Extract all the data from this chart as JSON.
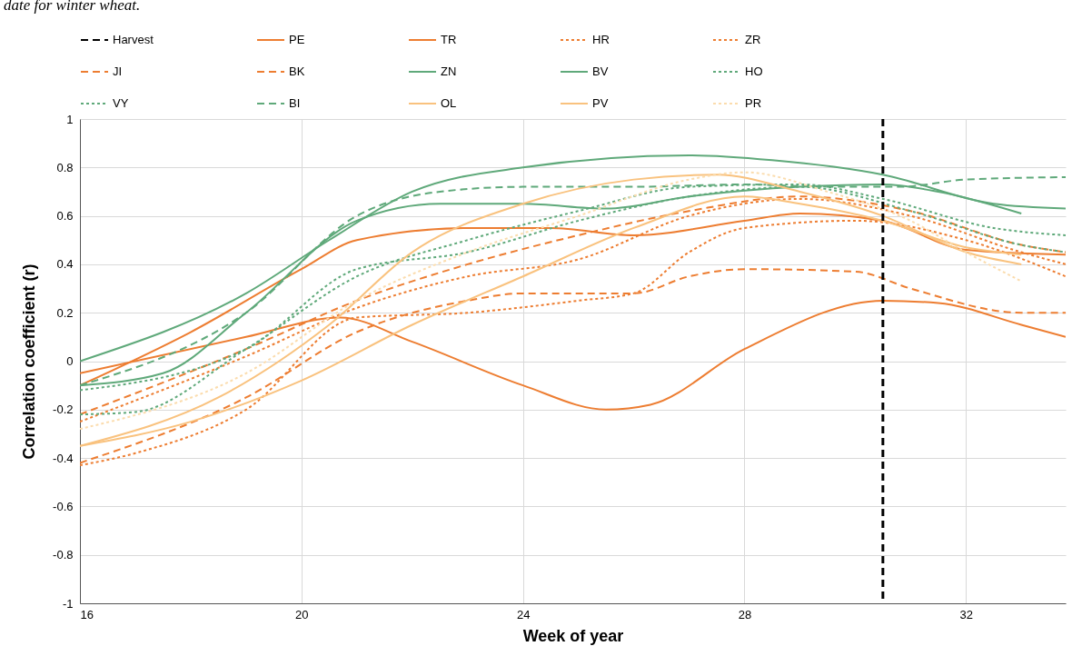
{
  "chart_data": {
    "type": "line",
    "xlabel": "Week of year",
    "ylabel": "Correlation coefficient (r)",
    "annotations": [
      "date for winter wheat."
    ],
    "xlim": [
      16,
      33.8
    ],
    "xticks": [
      16,
      20,
      24,
      28,
      32
    ],
    "ylim": [
      -1,
      1
    ],
    "yticks": [
      -1,
      -0.8,
      -0.6,
      -0.4,
      -0.2,
      0,
      0.2,
      0.4,
      0.6,
      0.8,
      1
    ],
    "grid": true,
    "legend": "top",
    "ref_lines": [
      {
        "axis": "x",
        "value": 30.5,
        "label": "Harvest",
        "color": "#000000",
        "line_style": "dashed"
      }
    ],
    "series": [
      {
        "name": "PE",
        "color": "#ed7d31",
        "line_style": "solid",
        "x": [
          16,
          18,
          20,
          21,
          23,
          24.5,
          26,
          28,
          29,
          30.5,
          32,
          33.8
        ],
        "values": [
          -0.1,
          0.12,
          0.38,
          0.5,
          0.55,
          0.55,
          0.52,
          0.58,
          0.61,
          0.58,
          0.46,
          0.44
        ]
      },
      {
        "name": "TR",
        "color": "#ed7d31",
        "line_style": "solid",
        "x": [
          16,
          19,
          20.7,
          22,
          24,
          25.5,
          26.3,
          28,
          30.5,
          31.5,
          33,
          33.8
        ],
        "values": [
          -0.05,
          0.1,
          0.18,
          0.08,
          -0.1,
          -0.2,
          -0.18,
          0.05,
          0.25,
          0.24,
          0.15,
          0.1
        ]
      },
      {
        "name": "HR",
        "color": "#ed7d31",
        "line_style": "dotted",
        "x": [
          16,
          17,
          19,
          21,
          23,
          25,
          26,
          27,
          28,
          30,
          32,
          33.8
        ],
        "values": [
          -0.43,
          -0.38,
          -0.2,
          0.18,
          0.2,
          0.25,
          0.28,
          0.45,
          0.55,
          0.58,
          0.5,
          0.35
        ]
      },
      {
        "name": "ZR",
        "color": "#ed7d31",
        "line_style": "dotted",
        "x": [
          16,
          19,
          21,
          23,
          25,
          27,
          29,
          31,
          33,
          33.8
        ],
        "values": [
          -0.25,
          0.02,
          0.22,
          0.35,
          0.42,
          0.6,
          0.67,
          0.6,
          0.45,
          0.4
        ]
      },
      {
        "name": "JI",
        "color": "#ed7d31",
        "line_style": "dashed",
        "x": [
          16,
          19,
          21,
          23,
          24,
          26,
          27,
          28,
          30,
          31,
          33,
          33.8
        ],
        "values": [
          -0.42,
          -0.15,
          0.12,
          0.25,
          0.28,
          0.28,
          0.35,
          0.38,
          0.37,
          0.3,
          0.2,
          0.2
        ]
      },
      {
        "name": "BK",
        "color": "#ed7d31",
        "line_style": "dashed",
        "x": [
          16,
          19,
          21,
          23,
          25,
          27,
          29,
          31,
          33,
          33.8
        ],
        "values": [
          -0.22,
          0.05,
          0.25,
          0.4,
          0.52,
          0.62,
          0.68,
          0.62,
          0.48,
          0.45
        ]
      },
      {
        "name": "ZN",
        "color": "#5fa97a",
        "line_style": "solid",
        "x": [
          16,
          19,
          20.5,
          22,
          24,
          27,
          28.5,
          30.5,
          32.5,
          33.8
        ],
        "values": [
          0,
          0.28,
          0.5,
          0.7,
          0.8,
          0.85,
          0.83,
          0.77,
          0.65,
          0.63
        ]
      },
      {
        "name": "BV",
        "color": "#5fa97a",
        "line_style": "solid",
        "x": [
          16,
          17.5,
          19,
          21,
          22.5,
          24,
          25.5,
          27,
          29,
          30.5,
          31.5,
          33
        ],
        "values": [
          -0.1,
          -0.05,
          0.2,
          0.58,
          0.65,
          0.65,
          0.63,
          0.68,
          0.72,
          0.73,
          0.7,
          0.61
        ]
      },
      {
        "name": "HO",
        "color": "#5fa97a",
        "line_style": "dotted",
        "x": [
          16,
          17,
          19,
          21,
          23,
          25,
          27,
          29,
          30.5,
          32.5,
          33.8
        ],
        "values": [
          -0.22,
          -0.21,
          0.05,
          0.35,
          0.5,
          0.62,
          0.72,
          0.73,
          0.67,
          0.55,
          0.52
        ]
      },
      {
        "name": "VY",
        "color": "#5fa97a",
        "line_style": "dotted",
        "x": [
          16,
          19,
          21,
          23,
          25,
          27,
          29,
          31,
          33,
          33.8
        ],
        "values": [
          -0.12,
          0.05,
          0.38,
          0.45,
          0.58,
          0.68,
          0.72,
          0.62,
          0.48,
          0.45
        ]
      },
      {
        "name": "BI",
        "color": "#5fa97a",
        "line_style": "dashed",
        "x": [
          16,
          19,
          21,
          22.5,
          24,
          26,
          28,
          29.5,
          30.8,
          32,
          33.8
        ],
        "values": [
          -0.1,
          0.2,
          0.6,
          0.7,
          0.72,
          0.72,
          0.73,
          0.72,
          0.72,
          0.75,
          0.76
        ]
      },
      {
        "name": "OL",
        "color": "#f9c27e",
        "line_style": "solid",
        "x": [
          16,
          18,
          20,
          22,
          24,
          26,
          28,
          29,
          30.5,
          32,
          33
        ],
        "values": [
          -0.35,
          -0.25,
          -0.08,
          0.15,
          0.35,
          0.55,
          0.68,
          0.65,
          0.58,
          0.47,
          0.44
        ]
      },
      {
        "name": "PV",
        "color": "#f9c27e",
        "line_style": "solid",
        "x": [
          16,
          18.5,
          20.5,
          22,
          24,
          26,
          27.5,
          29,
          30.5,
          32,
          33
        ],
        "values": [
          -0.35,
          -0.15,
          0.15,
          0.45,
          0.65,
          0.75,
          0.77,
          0.7,
          0.6,
          0.45,
          0.4
        ]
      },
      {
        "name": "PR",
        "color": "#fbdcad",
        "line_style": "dotted",
        "x": [
          16,
          19,
          21,
          23,
          25,
          27,
          28,
          29.5,
          31,
          32,
          33
        ],
        "values": [
          -0.28,
          -0.05,
          0.25,
          0.45,
          0.6,
          0.75,
          0.78,
          0.7,
          0.58,
          0.45,
          0.33
        ]
      }
    ]
  }
}
